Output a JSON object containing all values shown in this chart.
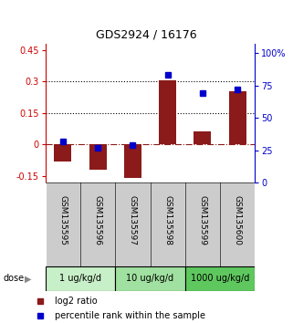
{
  "title": "GDS2924 / 16176",
  "samples": [
    "GSM135595",
    "GSM135596",
    "GSM135597",
    "GSM135598",
    "GSM135599",
    "GSM135600"
  ],
  "log2_ratio": [
    -0.08,
    -0.12,
    -0.16,
    0.305,
    0.065,
    0.255
  ],
  "percentile_rank": [
    32,
    27,
    29,
    83,
    69,
    72
  ],
  "dose_groups": [
    {
      "label": "1 ug/kg/d",
      "start": 0,
      "end": 1,
      "color": "#c8f0c8"
    },
    {
      "label": "10 ug/kg/d",
      "start": 2,
      "end": 3,
      "color": "#a0e0a0"
    },
    {
      "label": "1000 ug/kg/d",
      "start": 4,
      "end": 5,
      "color": "#5ec85e"
    }
  ],
  "bar_color": "#8b1a1a",
  "dot_color": "#0000cc",
  "ylim_left": [
    -0.18,
    0.48
  ],
  "ylim_right": [
    0,
    107.2
  ],
  "yticks_left": [
    -0.15,
    0,
    0.15,
    0.3,
    0.45
  ],
  "yticks_right": [
    0,
    25,
    50,
    75,
    100
  ],
  "hline_y": [
    0.15,
    0.3
  ],
  "bg_color": "#ffffff",
  "sample_bg_color": "#cccccc",
  "legend_bar_label": "log2 ratio",
  "legend_dot_label": "percentile rank within the sample"
}
